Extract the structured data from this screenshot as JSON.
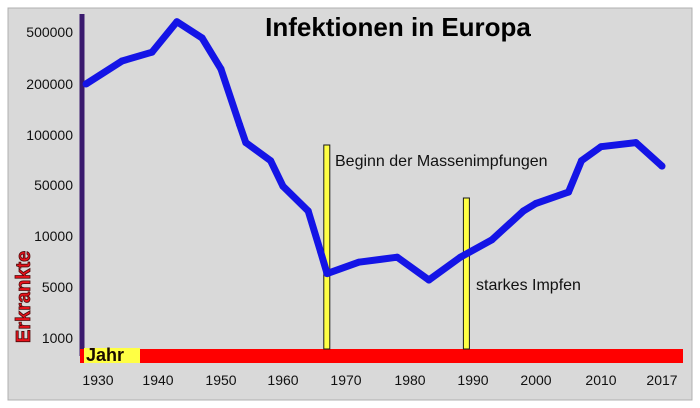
{
  "chart_data": {
    "type": "line",
    "title": "Infektionen in Europa",
    "xlabel": "Jahr",
    "ylabel": "Erkrankte",
    "x_ticks": [
      "1930",
      "1940",
      "1950",
      "1960",
      "1970",
      "1980",
      "1990",
      "2000",
      "2010",
      "2017"
    ],
    "y_ticks": [
      "500000",
      "200000",
      "100000",
      "50000",
      "10000",
      "5000",
      "1000"
    ],
    "y_scale": "log",
    "series": [
      {
        "x": [
          1928,
          1934,
          1939,
          1943,
          1947,
          1950,
          1953,
          1954,
          1958,
          1960,
          1964,
          1966,
          1967,
          1972,
          1978,
          1983,
          1988,
          1993,
          1998,
          2000,
          2005,
          2007,
          2010,
          2014,
          2017
        ],
        "y": [
          200000,
          300000,
          350000,
          600000,
          450000,
          260000,
          115000,
          90000,
          70000,
          48000,
          22000,
          8000,
          6000,
          7000,
          7500,
          5500,
          7500,
          9500,
          22000,
          28000,
          40000,
          70000,
          85000,
          90000,
          65000
        ]
      }
    ],
    "annotations": [
      {
        "x": 1966,
        "text": "Beginn der Massenimpfungen"
      },
      {
        "x": 1988,
        "text": "starkes Impfen"
      }
    ],
    "colors": {
      "line": "#1414e6",
      "marker_lines": "#ffff44",
      "x_axis": "#ff0000",
      "y_axis": "#3a1a6e",
      "background": "#d9d9d9",
      "ylabel": "#e8121b",
      "xlabel_box": "#ffff44"
    },
    "grid": false,
    "legend": "none"
  }
}
